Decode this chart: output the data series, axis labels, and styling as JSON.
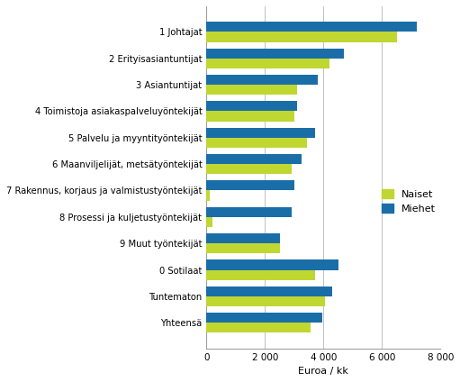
{
  "categories": [
    "1 Johtajat",
    "2 Erityisasiantuntijat",
    "3 Asiantuntijat",
    "4 Toimistoja asiakaspalveluyöntekijät",
    "5 Palvelu ja myyntityöntekijät",
    "6 Maanviljelijät, metsätyöntekijät",
    "7 Rakennus, korjaus ja valmistustyöntekijät",
    "8 Prosessi ja kuljetustyöntekijät",
    "9 Muut työntekijät",
    "0 Sotilaat",
    "Tuntematon",
    "Yhteensä"
  ],
  "naiset": [
    6500,
    4200,
    3100,
    3000,
    3450,
    2900,
    100,
    200,
    2500,
    3700,
    4050,
    3550
  ],
  "miehet": [
    7200,
    4700,
    3800,
    3100,
    3700,
    3250,
    3000,
    2900,
    2500,
    4500,
    4300,
    3950
  ],
  "color_naiset": "#bfd730",
  "color_miehet": "#1a6ea8",
  "xlabel": "Euroa / kk",
  "legend_naiset": "Naiset",
  "legend_miehet": "Miehet",
  "xlim": [
    0,
    8000
  ],
  "xticks": [
    0,
    2000,
    4000,
    6000,
    8000
  ],
  "xtick_labels": [
    "0",
    "2 000",
    "4 000",
    "6 000",
    "8 000"
  ],
  "background_color": "#ffffff",
  "grid_color": "#c0c0c0"
}
